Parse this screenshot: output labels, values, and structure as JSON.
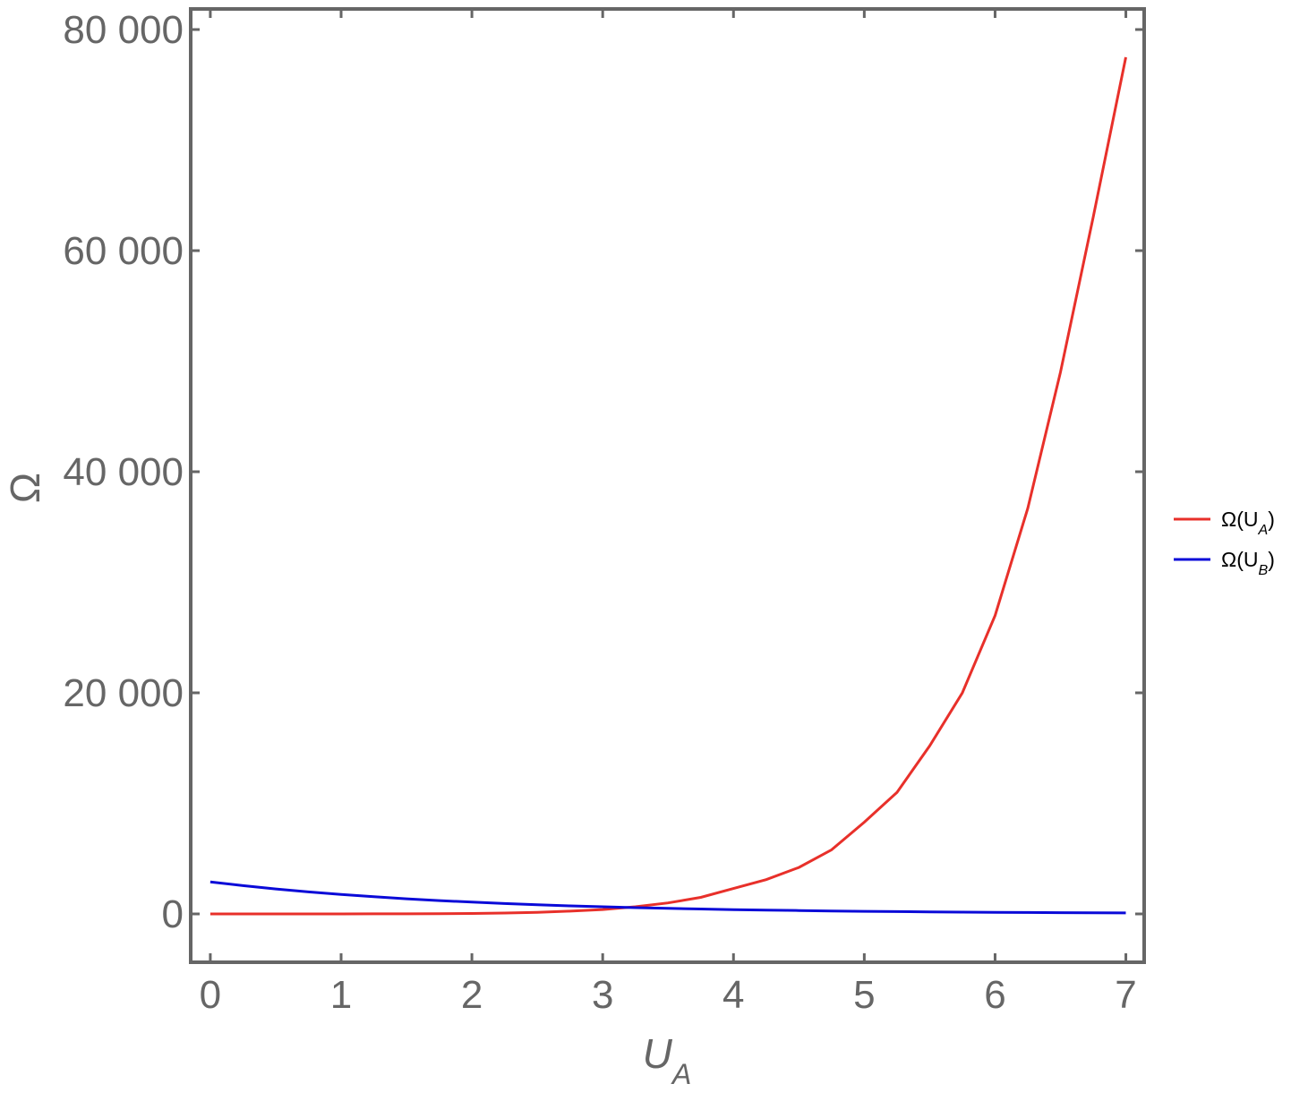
{
  "chart_data": {
    "type": "line",
    "xlabel": "U_A",
    "ylabel": "Ω",
    "x": [
      0,
      0.25,
      0.5,
      0.75,
      1,
      1.25,
      1.5,
      1.75,
      2,
      2.25,
      2.5,
      2.75,
      3,
      3.25,
      3.5,
      3.75,
      4,
      4.25,
      4.5,
      4.75,
      5,
      5.25,
      5.5,
      5.75,
      6,
      6.25,
      6.5,
      6.75,
      7
    ],
    "series": [
      {
        "name": "Ω(U_A)",
        "color": "#e8302a",
        "values": [
          0,
          0,
          0,
          0,
          0,
          5,
          10,
          20,
          40,
          80,
          150,
          250,
          400,
          650,
          1000,
          1500,
          2300,
          3100,
          4200,
          5800,
          8300,
          11000,
          15200,
          20000,
          27000,
          36700,
          49000,
          63000,
          77500
        ]
      },
      {
        "name": "Ω(U_B)",
        "color": "#0a0ad8",
        "values": [
          2900,
          2559,
          2258,
          1993,
          1759,
          1552,
          1370,
          1209,
          1067,
          941,
          831,
          733,
          647,
          571,
          504,
          445,
          392,
          346,
          306,
          270,
          238,
          210,
          185,
          164,
          144,
          127,
          112,
          99,
          88
        ]
      }
    ],
    "xlim": [
      -0.15,
      7.14
    ],
    "ylim": [
      -4372,
      81862
    ],
    "xticks": [
      0,
      1,
      2,
      3,
      4,
      5,
      6,
      7
    ],
    "yticks": [
      0,
      {
        "value": 20000,
        "label": "20 000"
      },
      {
        "value": 40000,
        "label": "40 000"
      },
      {
        "value": 60000,
        "label": "60 000"
      },
      {
        "value": 80000,
        "label": "80 000"
      }
    ],
    "legend": "right"
  }
}
